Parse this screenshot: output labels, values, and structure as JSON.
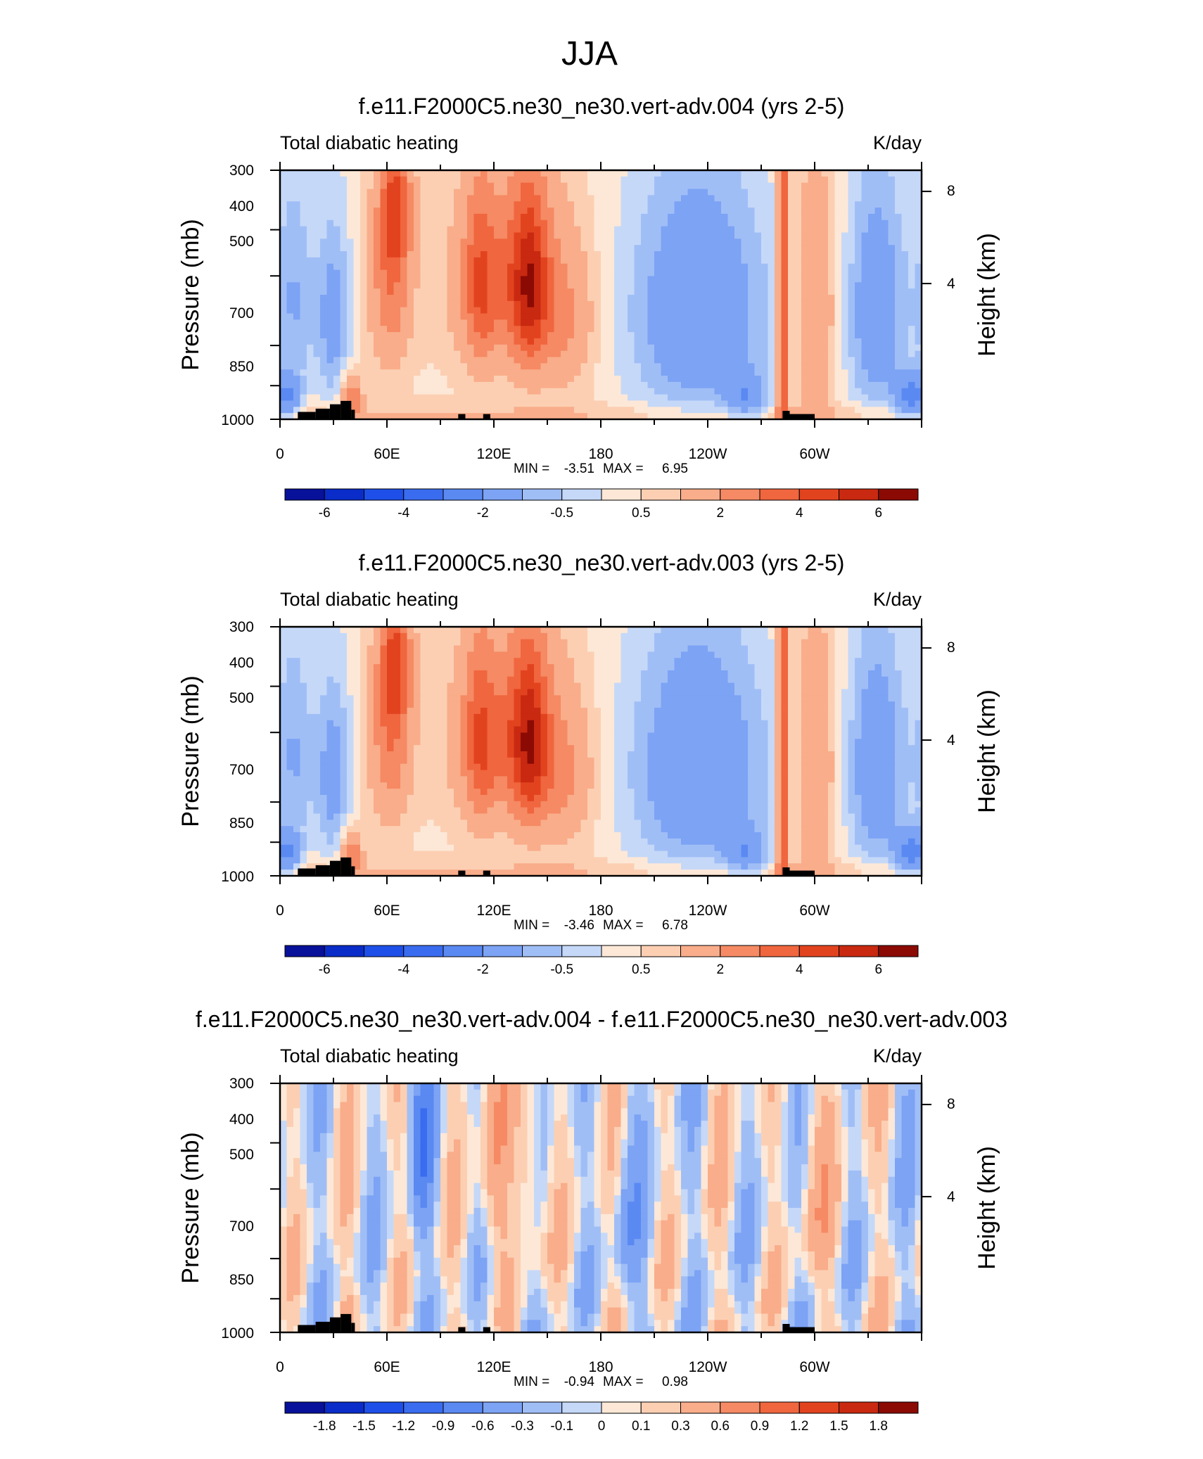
{
  "figure_title": "JJA",
  "chart_data": [
    {
      "type": "heatmap",
      "title": "f.e11.F2000C5.ne30_ne30.vert-adv.004 (yrs 2-5)",
      "left_string": "Total diabatic heating",
      "right_string": "K/day",
      "ylabel": "Pressure (mb)",
      "ylabel_right": "Height (km)",
      "x_ticks": [
        "0",
        "60E",
        "120E",
        "180",
        "120W",
        "60W"
      ],
      "y_ticks": [
        "300",
        "400",
        "500",
        "700",
        "850",
        "1000"
      ],
      "y_right_ticks": [
        "8",
        "4"
      ],
      "min_label": "MIN =",
      "min_value": "-3.51",
      "max_label": "MAX =",
      "max_value": "6.95",
      "colorbar_labels": [
        "-6",
        "-4",
        "-2",
        "-0.5",
        "0.5",
        "2",
        "4",
        "6"
      ],
      "colorbar_levels": [
        -7,
        -6,
        -5,
        -4,
        -3,
        -2,
        -1,
        -0.5,
        0,
        0.5,
        1,
        2,
        3,
        4,
        5,
        6,
        7
      ],
      "field": "full"
    },
    {
      "type": "heatmap",
      "title": "f.e11.F2000C5.ne30_ne30.vert-adv.003 (yrs 2-5)",
      "left_string": "Total diabatic heating",
      "right_string": "K/day",
      "ylabel": "Pressure (mb)",
      "ylabel_right": "Height (km)",
      "x_ticks": [
        "0",
        "60E",
        "120E",
        "180",
        "120W",
        "60W"
      ],
      "y_ticks": [
        "300",
        "400",
        "500",
        "700",
        "850",
        "1000"
      ],
      "y_right_ticks": [
        "8",
        "4"
      ],
      "min_label": "MIN =",
      "min_value": "-3.46",
      "max_label": "MAX =",
      "max_value": "6.78",
      "colorbar_labels": [
        "-6",
        "-4",
        "-2",
        "-0.5",
        "0.5",
        "2",
        "4",
        "6"
      ],
      "colorbar_levels": [
        -7,
        -6,
        -5,
        -4,
        -3,
        -2,
        -1,
        -0.5,
        0,
        0.5,
        1,
        2,
        3,
        4,
        5,
        6,
        7
      ],
      "field": "full"
    },
    {
      "type": "heatmap",
      "title": "f.e11.F2000C5.ne30_ne30.vert-adv.004 - f.e11.F2000C5.ne30_ne30.vert-adv.003",
      "left_string": "Total diabatic heating",
      "right_string": "K/day",
      "ylabel": "Pressure (mb)",
      "ylabel_right": "Height (km)",
      "x_ticks": [
        "0",
        "60E",
        "120E",
        "180",
        "120W",
        "60W"
      ],
      "y_ticks": [
        "300",
        "400",
        "500",
        "700",
        "850",
        "1000"
      ],
      "y_right_ticks": [
        "8",
        "4"
      ],
      "min_label": "MIN =",
      "min_value": "-0.94",
      "max_label": "MAX =",
      "max_value": "0.98",
      "colorbar_labels": [
        "-1.8",
        "-1.5",
        "-1.2",
        "-0.9",
        "-0.6",
        "-0.3",
        "-0.1",
        "0",
        "0.1",
        "0.3",
        "0.6",
        "0.9",
        "1.2",
        "1.5",
        "1.8"
      ],
      "colorbar_levels": [
        -2.1,
        -1.8,
        -1.5,
        -1.2,
        -0.9,
        -0.6,
        -0.3,
        -0.1,
        0,
        0.1,
        0.3,
        0.6,
        0.9,
        1.2,
        1.5,
        1.8,
        2.1
      ],
      "field": "diff"
    }
  ],
  "colormap": [
    "#08119a",
    "#0a2cc8",
    "#1e4fe8",
    "#3a6cf0",
    "#5a89f2",
    "#7ca3f4",
    "#a0bef6",
    "#c5d8f8",
    "#fde8d7",
    "#fccfb3",
    "#f9ad8a",
    "#f58a64",
    "#f0663e",
    "#e2431f",
    "#c82910",
    "#8b0a04"
  ]
}
